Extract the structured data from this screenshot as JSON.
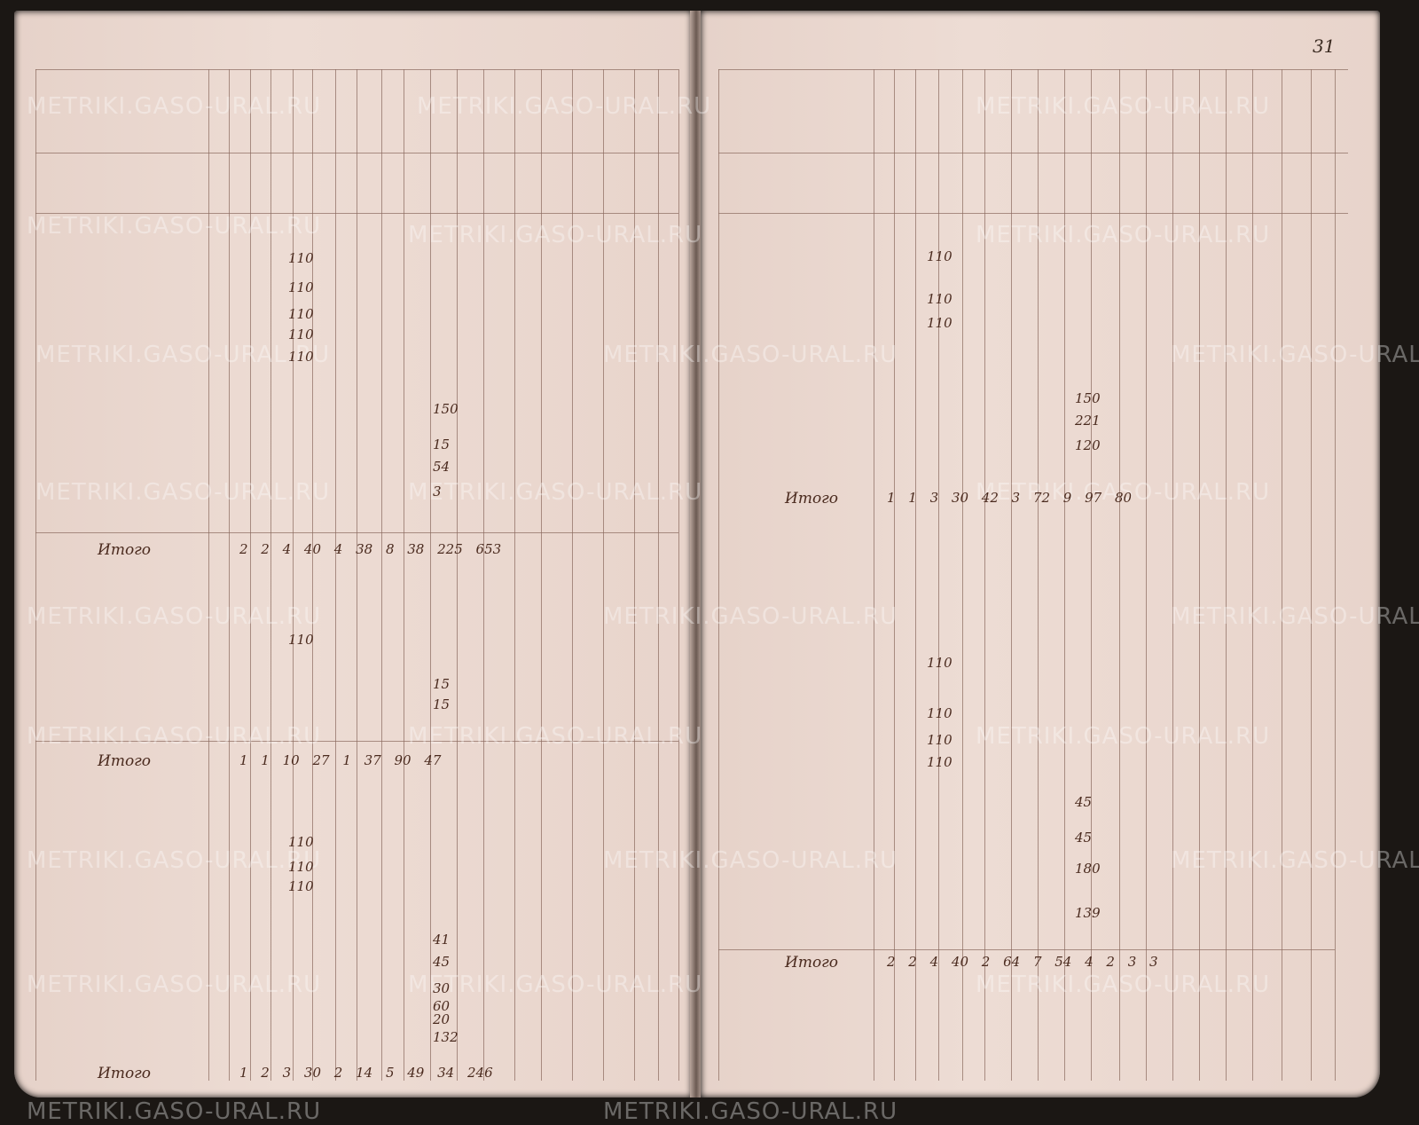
{
  "document": {
    "page_number": "31",
    "watermark": "METRIKI.GASO-URAL.RU",
    "left_page": {
      "totals": [
        {
          "label": "Итого",
          "values": "2  2  4  40  4  38  8  38  225  653"
        },
        {
          "label": "Итого",
          "values": "1  1  10  27  1  37  90  47"
        },
        {
          "label": "Итого",
          "values": "1  2  3  30  2  14  5  49  34  246"
        }
      ],
      "amounts": [
        "110",
        "110",
        "110",
        "110",
        "110",
        "150",
        "15",
        "54",
        "3",
        "110",
        "15",
        "15",
        "110",
        "110",
        "110",
        "41",
        "45",
        "30",
        "60",
        "20",
        "132"
      ]
    },
    "right_page": {
      "totals": [
        {
          "label": "Итого",
          "values": "1  1  3  30  42  3  72  9  97  80"
        },
        {
          "label": "Итого",
          "values": "2  2  4  40  2  64  7  54  4  2  3  3"
        }
      ],
      "amounts": [
        "110",
        "110",
        "110",
        "150",
        "221",
        "120",
        "110",
        "110",
        "110",
        "110",
        "45",
        "45",
        "180",
        "139"
      ]
    }
  }
}
